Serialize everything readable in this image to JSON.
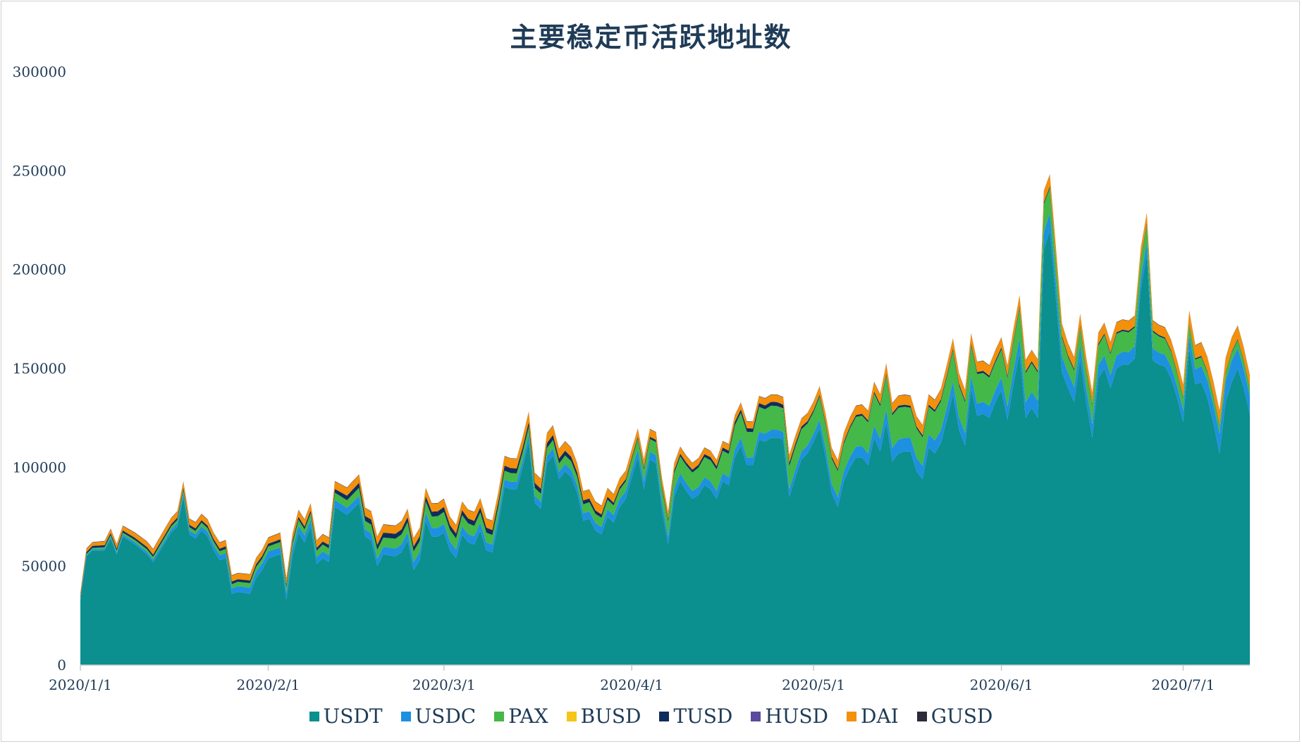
{
  "chart_data": {
    "type": "area",
    "stacked": true,
    "title": "主要稳定币活跃地址数",
    "xlabel": "",
    "ylabel": "",
    "ylim": [
      0,
      300000
    ],
    "yticks": [
      0,
      50000,
      100000,
      150000,
      200000,
      250000,
      300000
    ],
    "ytick_labels": [
      "0",
      "50000",
      "100000",
      "150000",
      "200000",
      "250000",
      "300000"
    ],
    "x_start": "2020-01-01",
    "x_end": "2020-07-15",
    "xtick_dates": [
      "2020-01-01",
      "2020-02-01",
      "2020-03-01",
      "2020-04-01",
      "2020-05-01",
      "2020-06-01",
      "2020-07-01"
    ],
    "xtick_labels": [
      "2020/1/1",
      "2020/2/1",
      "2020/3/1",
      "2020/4/1",
      "2020/5/1",
      "2020/6/1",
      "2020/7/1"
    ],
    "legend_position": "bottom",
    "series": [
      {
        "name": "USDT",
        "color": "#0b8f8f",
        "points": [
          [
            "2020-01-01",
            33000
          ],
          [
            "2020-01-02",
            55000
          ],
          [
            "2020-01-03",
            58000
          ],
          [
            "2020-01-05",
            58000
          ],
          [
            "2020-01-06",
            64000
          ],
          [
            "2020-01-07",
            56000
          ],
          [
            "2020-01-08",
            65000
          ],
          [
            "2020-01-10",
            61000
          ],
          [
            "2020-01-12",
            56000
          ],
          [
            "2020-01-13",
            52000
          ],
          [
            "2020-01-15",
            62000
          ],
          [
            "2020-01-16",
            67000
          ],
          [
            "2020-01-17",
            70000
          ],
          [
            "2020-01-18",
            85000
          ],
          [
            "2020-01-19",
            66000
          ],
          [
            "2020-01-20",
            64000
          ],
          [
            "2020-01-21",
            68000
          ],
          [
            "2020-01-22",
            65000
          ],
          [
            "2020-01-23",
            58000
          ],
          [
            "2020-01-24",
            53000
          ],
          [
            "2020-01-25",
            54000
          ],
          [
            "2020-01-26",
            36000
          ],
          [
            "2020-01-27",
            37000
          ],
          [
            "2020-01-29",
            36000
          ],
          [
            "2020-01-30",
            44000
          ],
          [
            "2020-01-31",
            48000
          ],
          [
            "2020-02-01",
            54000
          ],
          [
            "2020-02-03",
            56000
          ],
          [
            "2020-02-04",
            33000
          ],
          [
            "2020-02-05",
            55000
          ],
          [
            "2020-02-06",
            67000
          ],
          [
            "2020-02-07",
            62000
          ],
          [
            "2020-02-08",
            70000
          ],
          [
            "2020-02-09",
            51000
          ],
          [
            "2020-02-10",
            54000
          ],
          [
            "2020-02-11",
            52000
          ],
          [
            "2020-02-12",
            80000
          ],
          [
            "2020-02-14",
            76000
          ],
          [
            "2020-02-15",
            79000
          ],
          [
            "2020-02-16",
            82000
          ],
          [
            "2020-02-17",
            65000
          ],
          [
            "2020-02-18",
            63000
          ],
          [
            "2020-02-19",
            50000
          ],
          [
            "2020-02-20",
            56000
          ],
          [
            "2020-02-22",
            55000
          ],
          [
            "2020-02-23",
            57000
          ],
          [
            "2020-02-24",
            63000
          ],
          [
            "2020-02-25",
            48000
          ],
          [
            "2020-02-26",
            53000
          ],
          [
            "2020-02-27",
            73000
          ],
          [
            "2020-02-28",
            65000
          ],
          [
            "2020-02-29",
            65000
          ],
          [
            "2020-03-01",
            67000
          ],
          [
            "2020-03-02",
            58000
          ],
          [
            "2020-03-03",
            54000
          ],
          [
            "2020-03-04",
            66000
          ],
          [
            "2020-03-05",
            62000
          ],
          [
            "2020-03-06",
            61000
          ],
          [
            "2020-03-07",
            68000
          ],
          [
            "2020-03-08",
            58000
          ],
          [
            "2020-03-09",
            57000
          ],
          [
            "2020-03-10",
            72000
          ],
          [
            "2020-03-11",
            90000
          ],
          [
            "2020-03-12",
            89000
          ],
          [
            "2020-03-13",
            89000
          ],
          [
            "2020-03-14",
            100000
          ],
          [
            "2020-03-15",
            113000
          ],
          [
            "2020-03-16",
            82000
          ],
          [
            "2020-03-17",
            79000
          ],
          [
            "2020-03-18",
            102000
          ],
          [
            "2020-03-19",
            106000
          ],
          [
            "2020-03-20",
            94000
          ],
          [
            "2020-03-21",
            98000
          ],
          [
            "2020-03-22",
            95000
          ],
          [
            "2020-03-23",
            87000
          ],
          [
            "2020-03-24",
            73000
          ],
          [
            "2020-03-25",
            74000
          ],
          [
            "2020-03-26",
            68000
          ],
          [
            "2020-03-27",
            66000
          ],
          [
            "2020-03-28",
            75000
          ],
          [
            "2020-03-29",
            72000
          ],
          [
            "2020-03-30",
            80000
          ],
          [
            "2020-03-31",
            84000
          ],
          [
            "2020-04-01",
            95000
          ],
          [
            "2020-04-02",
            105000
          ],
          [
            "2020-04-03",
            89000
          ],
          [
            "2020-04-04",
            104000
          ],
          [
            "2020-04-05",
            102000
          ],
          [
            "2020-04-06",
            78000
          ],
          [
            "2020-04-07",
            61000
          ],
          [
            "2020-04-08",
            85000
          ],
          [
            "2020-04-09",
            93000
          ],
          [
            "2020-04-10",
            88000
          ],
          [
            "2020-04-11",
            84000
          ],
          [
            "2020-04-12",
            86000
          ],
          [
            "2020-04-13",
            91000
          ],
          [
            "2020-04-14",
            89000
          ],
          [
            "2020-04-15",
            84000
          ],
          [
            "2020-04-16",
            93000
          ],
          [
            "2020-04-17",
            91000
          ],
          [
            "2020-04-18",
            105000
          ],
          [
            "2020-04-19",
            111000
          ],
          [
            "2020-04-20",
            101000
          ],
          [
            "2020-04-21",
            101000
          ],
          [
            "2020-04-22",
            114000
          ],
          [
            "2020-04-23",
            113000
          ],
          [
            "2020-04-24",
            115000
          ],
          [
            "2020-04-25",
            115000
          ],
          [
            "2020-04-26",
            114000
          ],
          [
            "2020-04-27",
            85000
          ],
          [
            "2020-04-28",
            95000
          ],
          [
            "2020-04-29",
            104000
          ],
          [
            "2020-04-30",
            107000
          ],
          [
            "2020-05-01",
            113000
          ],
          [
            "2020-05-02",
            120000
          ],
          [
            "2020-05-03",
            105000
          ],
          [
            "2020-05-04",
            87000
          ],
          [
            "2020-05-05",
            80000
          ],
          [
            "2020-05-06",
            93000
          ],
          [
            "2020-05-07",
            100000
          ],
          [
            "2020-05-08",
            105000
          ],
          [
            "2020-05-09",
            105000
          ],
          [
            "2020-05-10",
            101000
          ],
          [
            "2020-05-11",
            115000
          ],
          [
            "2020-05-12",
            108000
          ],
          [
            "2020-05-13",
            123000
          ],
          [
            "2020-05-14",
            103000
          ],
          [
            "2020-05-15",
            107000
          ],
          [
            "2020-05-16",
            108000
          ],
          [
            "2020-05-17",
            108000
          ],
          [
            "2020-05-18",
            98000
          ],
          [
            "2020-05-19",
            94000
          ],
          [
            "2020-05-20",
            110000
          ],
          [
            "2020-05-21",
            107000
          ],
          [
            "2020-05-22",
            112000
          ],
          [
            "2020-05-23",
            124000
          ],
          [
            "2020-05-24",
            137000
          ],
          [
            "2020-05-25",
            119000
          ],
          [
            "2020-05-26",
            111000
          ],
          [
            "2020-05-27",
            140000
          ],
          [
            "2020-05-28",
            126000
          ],
          [
            "2020-05-29",
            127000
          ],
          [
            "2020-05-30",
            125000
          ],
          [
            "2020-05-31",
            133000
          ],
          [
            "2020-06-01",
            139000
          ],
          [
            "2020-06-02",
            124000
          ],
          [
            "2020-06-03",
            142000
          ],
          [
            "2020-06-04",
            158000
          ],
          [
            "2020-06-05",
            125000
          ],
          [
            "2020-06-06",
            130000
          ],
          [
            "2020-06-07",
            125000
          ],
          [
            "2020-06-08",
            210000
          ],
          [
            "2020-06-09",
            220000
          ],
          [
            "2020-06-10",
            185000
          ],
          [
            "2020-06-11",
            148000
          ],
          [
            "2020-06-12",
            140000
          ],
          [
            "2020-06-13",
            133000
          ],
          [
            "2020-06-14",
            155000
          ],
          [
            "2020-06-15",
            133000
          ],
          [
            "2020-06-16",
            115000
          ],
          [
            "2020-06-17",
            145000
          ],
          [
            "2020-06-18",
            150000
          ],
          [
            "2020-06-19",
            140000
          ],
          [
            "2020-06-20",
            150000
          ],
          [
            "2020-06-21",
            152000
          ],
          [
            "2020-06-22",
            152000
          ],
          [
            "2020-06-23",
            155000
          ],
          [
            "2020-06-24",
            190000
          ],
          [
            "2020-06-25",
            208000
          ],
          [
            "2020-06-26",
            154000
          ],
          [
            "2020-06-27",
            152000
          ],
          [
            "2020-06-28",
            151000
          ],
          [
            "2020-06-29",
            145000
          ],
          [
            "2020-06-30",
            135000
          ],
          [
            "2020-07-01",
            123000
          ],
          [
            "2020-07-02",
            160000
          ],
          [
            "2020-07-03",
            142000
          ],
          [
            "2020-07-04",
            143000
          ],
          [
            "2020-07-05",
            135000
          ],
          [
            "2020-07-06",
            122000
          ],
          [
            "2020-07-07",
            107000
          ],
          [
            "2020-07-08",
            133000
          ],
          [
            "2020-07-09",
            143000
          ],
          [
            "2020-07-10",
            150000
          ],
          [
            "2020-07-11",
            140000
          ],
          [
            "2020-07-12",
            127000
          ]
        ]
      },
      {
        "name": "USDC",
        "color": "#1e90e0",
        "points": [
          [
            "2020-01-01",
            500
          ],
          [
            "2020-01-15",
            1500
          ],
          [
            "2020-02-01",
            3500
          ],
          [
            "2020-02-15",
            3500
          ],
          [
            "2020-03-01",
            4500
          ],
          [
            "2020-03-15",
            3500
          ],
          [
            "2020-04-01",
            4000
          ],
          [
            "2020-04-15",
            4000
          ],
          [
            "2020-05-01",
            4000
          ],
          [
            "2020-05-15",
            7000
          ],
          [
            "2020-05-31",
            6000
          ],
          [
            "2020-06-08",
            9000
          ],
          [
            "2020-06-15",
            7000
          ],
          [
            "2020-06-25",
            6000
          ],
          [
            "2020-07-01",
            6000
          ],
          [
            "2020-07-05",
            9000
          ],
          [
            "2020-07-09",
            11000
          ],
          [
            "2020-07-12",
            9000
          ]
        ]
      },
      {
        "name": "PAX",
        "color": "#44b848",
        "points": [
          [
            "2020-01-01",
            500
          ],
          [
            "2020-01-15",
            1500
          ],
          [
            "2020-02-01",
            2500
          ],
          [
            "2020-02-15",
            4000
          ],
          [
            "2020-03-01",
            6000
          ],
          [
            "2020-03-15",
            4000
          ],
          [
            "2020-04-01",
            5000
          ],
          [
            "2020-04-10",
            9000
          ],
          [
            "2020-04-20",
            13000
          ],
          [
            "2020-04-25",
            12000
          ],
          [
            "2020-05-01",
            11000
          ],
          [
            "2020-05-08",
            15000
          ],
          [
            "2020-05-13",
            17000
          ],
          [
            "2020-05-20",
            14000
          ],
          [
            "2020-05-25",
            16000
          ],
          [
            "2020-05-31",
            14000
          ],
          [
            "2020-06-04",
            15000
          ],
          [
            "2020-06-08",
            14000
          ],
          [
            "2020-06-12",
            8000
          ],
          [
            "2020-06-20",
            11000
          ],
          [
            "2020-06-24",
            9000
          ],
          [
            "2020-06-28",
            8000
          ],
          [
            "2020-07-01",
            6000
          ],
          [
            "2020-07-05",
            4000
          ],
          [
            "2020-07-12",
            4000
          ]
        ]
      },
      {
        "name": "BUSD",
        "color": "#f5c518",
        "points": [
          [
            "2020-01-01",
            0
          ],
          [
            "2020-07-12",
            0
          ]
        ]
      },
      {
        "name": "TUSD",
        "color": "#0f2d5c",
        "points": [
          [
            "2020-01-01",
            1000
          ],
          [
            "2020-02-10",
            1500
          ],
          [
            "2020-02-15",
            2500
          ],
          [
            "2020-03-01",
            2500
          ],
          [
            "2020-03-20",
            2500
          ],
          [
            "2020-04-01",
            1000
          ],
          [
            "2020-04-25",
            2000
          ],
          [
            "2020-05-01",
            1000
          ],
          [
            "2020-06-01",
            1000
          ],
          [
            "2020-07-12",
            500
          ]
        ]
      },
      {
        "name": "HUSD",
        "color": "#5b4a9e",
        "points": [
          [
            "2020-01-01",
            0
          ],
          [
            "2020-07-12",
            0
          ]
        ]
      },
      {
        "name": "DAI",
        "color": "#f4900c",
        "points": [
          [
            "2020-01-01",
            1500
          ],
          [
            "2020-01-15",
            3000
          ],
          [
            "2020-02-01",
            3000
          ],
          [
            "2020-02-15",
            4000
          ],
          [
            "2020-03-01",
            4000
          ],
          [
            "2020-03-15",
            5000
          ],
          [
            "2020-04-01",
            4000
          ],
          [
            "2020-04-15",
            3000
          ],
          [
            "2020-05-01",
            4000
          ],
          [
            "2020-05-15",
            5000
          ],
          [
            "2020-06-01",
            5000
          ],
          [
            "2020-06-10",
            6000
          ],
          [
            "2020-06-20",
            5000
          ],
          [
            "2020-06-28",
            5000
          ],
          [
            "2020-07-01",
            6000
          ],
          [
            "2020-07-05",
            7000
          ],
          [
            "2020-07-09",
            7000
          ],
          [
            "2020-07-12",
            6000
          ]
        ]
      },
      {
        "name": "GUSD",
        "color": "#2b2b3a",
        "points": [
          [
            "2020-01-01",
            200
          ],
          [
            "2020-07-12",
            200
          ]
        ]
      }
    ]
  }
}
